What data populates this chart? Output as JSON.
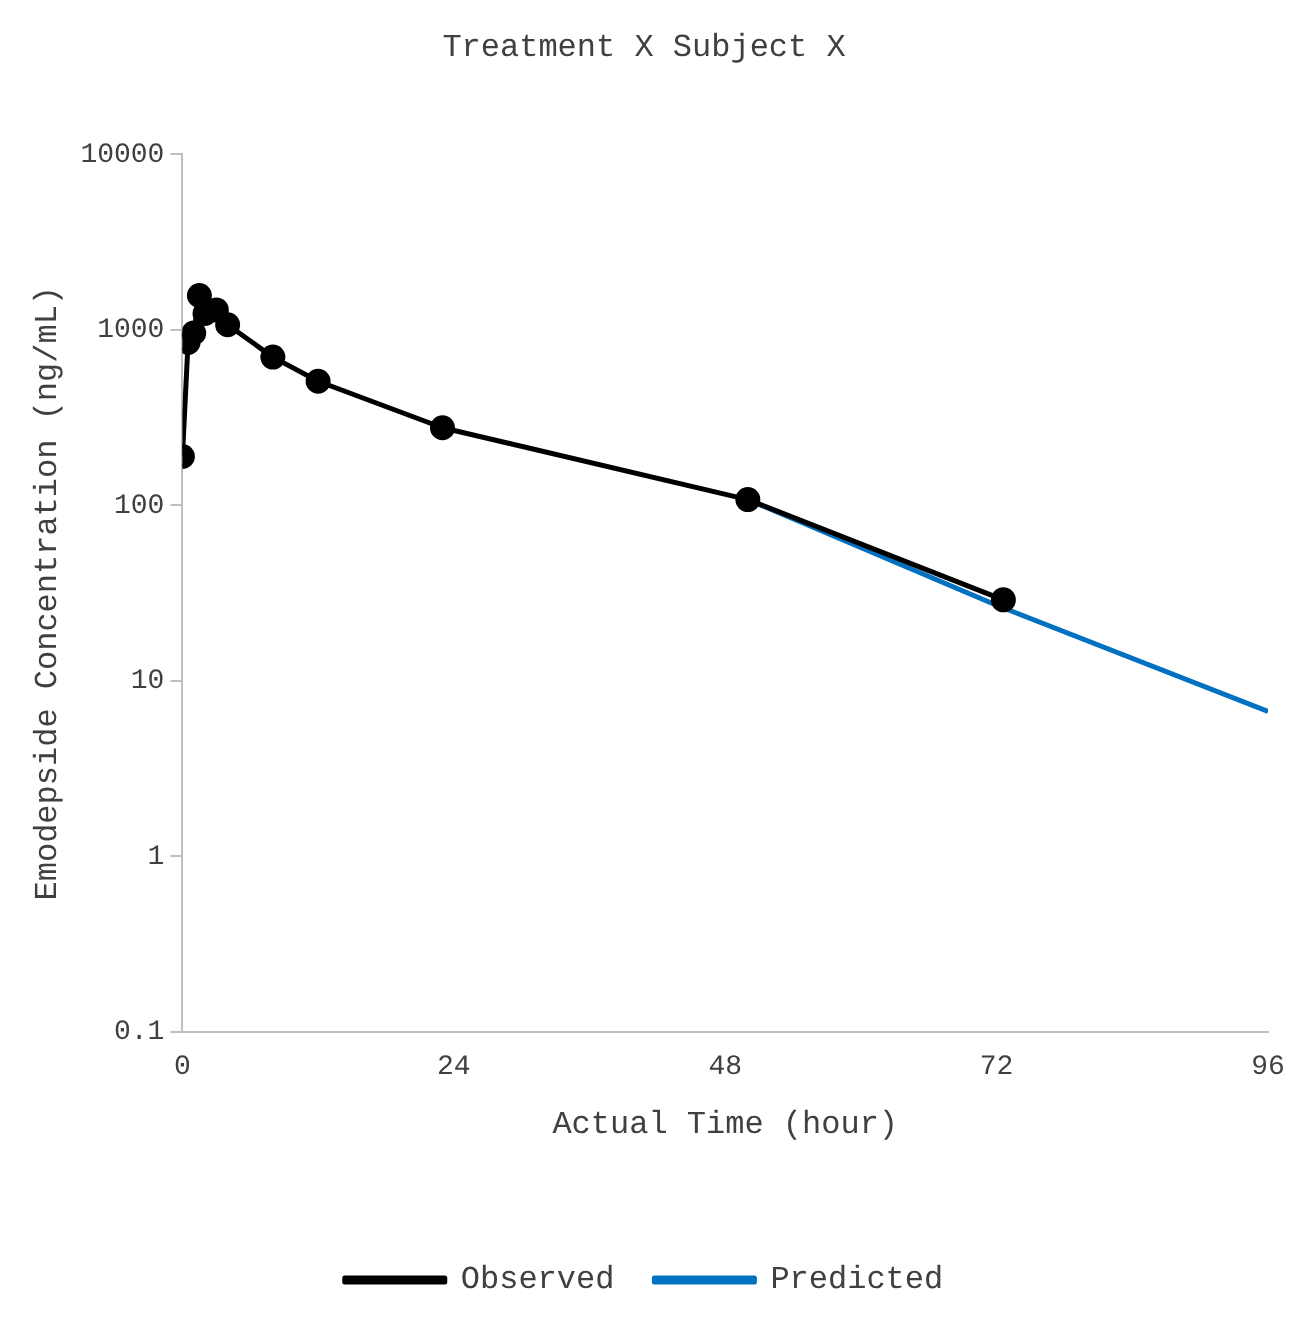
{
  "chart_data": {
    "type": "line",
    "title": "Treatment X Subject X",
    "xlabel": "Actual Time (hour)",
    "ylabel": "Emodepside Concentration (ng/mL)",
    "log": "y",
    "xlim": [
      0,
      96
    ],
    "xticks": [
      0,
      24,
      48,
      72,
      96
    ],
    "ylim": [
      0.1,
      10000
    ],
    "yticks": [
      0.1,
      1,
      10,
      100,
      1000,
      10000
    ],
    "grid": false,
    "legend": "bottom",
    "line_style": "solid",
    "series": [
      {
        "name": "Observed",
        "color": "#000000",
        "marker": "circle",
        "x": [
          0,
          0.5,
          1,
          1.5,
          2,
          3,
          4,
          8,
          12,
          23,
          50,
          72.6
        ],
        "values": [
          190,
          850,
          960,
          1570,
          1240,
          1300,
          1070,
          700,
          510,
          277,
          108,
          29
        ]
      },
      {
        "name": "Predicted",
        "color": "#0070c0",
        "marker": "none",
        "x": [
          50,
          72,
          96
        ],
        "values": [
          108,
          27,
          6.7
        ]
      }
    ]
  }
}
